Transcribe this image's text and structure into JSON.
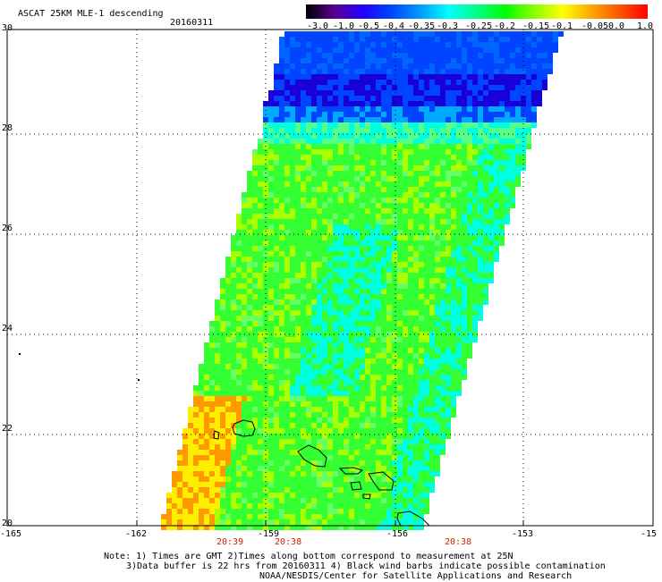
{
  "header": {
    "product": "ASCAT 25KM MLE-1 descending",
    "date": "20160311"
  },
  "colorbar": {
    "labels": [
      "-3.0",
      "-1.0",
      "-0.5",
      "-0.4",
      "-0.35",
      "-0.3",
      "-0.25",
      "-0.2",
      "-0.15",
      "-0.1",
      "-0.05",
      "0.0",
      "1.0"
    ],
    "colors": [
      "#000000",
      "#5a0090",
      "#2200ff",
      "#0044ff",
      "#0099ff",
      "#00ffff",
      "#00ff88",
      "#00ff00",
      "#88ff00",
      "#ffff00",
      "#ffaa00",
      "#ff5500",
      "#ff0000"
    ]
  },
  "axes": {
    "lat_labels": [
      "30",
      "28",
      "26",
      "24",
      "22",
      "20"
    ],
    "lon_labels": [
      "-165",
      "-162",
      "-159",
      "-156",
      "-153",
      "-15"
    ]
  },
  "times": [
    "20:39",
    "20:38",
    "20:38"
  ],
  "notes": {
    "line1": "Note: 1) Times are GMT 2)Times along bottom correspond to measurement at 25N",
    "line2": "3)Data buffer is 22 hrs from 20160311 4) Black wind barbs indicate possible contamination",
    "line3": "NOAA/NESDIS/Center for Satellite Applications and Research"
  },
  "palette": {
    "deep_blue": "#1a00d8",
    "blue": "#0044ff",
    "cyan": "#00ffdd",
    "green": "#33ff33",
    "yellow_green": "#aaff00",
    "yellow": "#ffee00",
    "orange": "#ff9900"
  }
}
